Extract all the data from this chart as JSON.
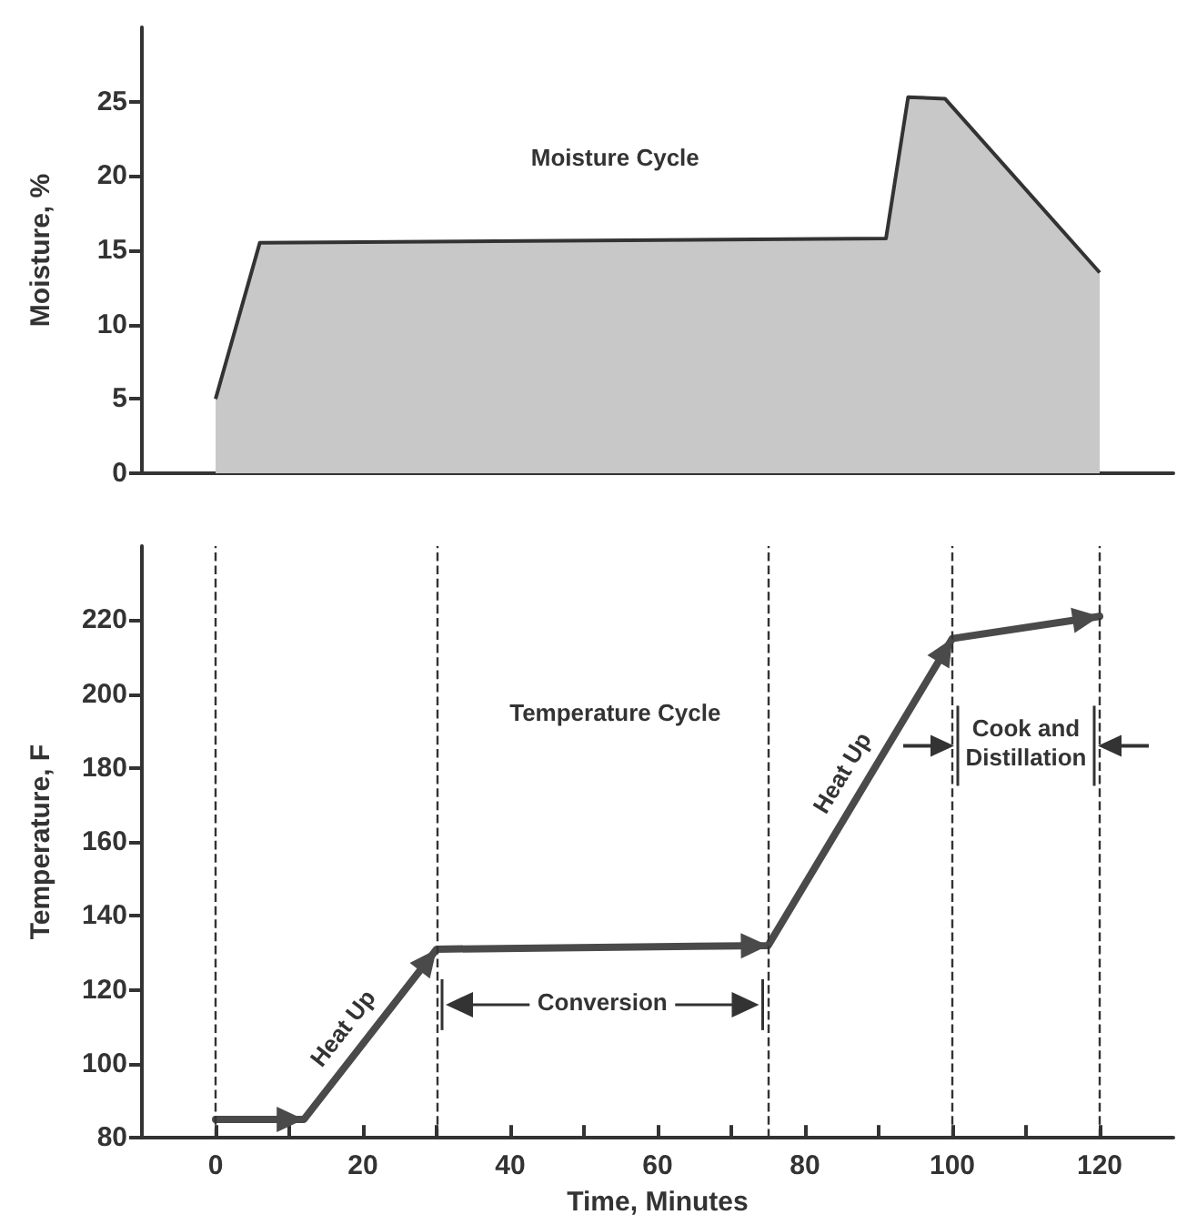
{
  "chart_data": [
    {
      "type": "area",
      "title": "Moisture Cycle",
      "ylabel": "Moisture, %",
      "x": [
        0,
        6,
        91,
        94,
        99,
        120
      ],
      "values": [
        5,
        15.5,
        15.8,
        25.3,
        25.2,
        13.5
      ],
      "color": "#c8c8c8",
      "xlim": [
        -10,
        130
      ],
      "ylim": [
        0,
        30
      ],
      "yticks": [
        0,
        5,
        10,
        15,
        20,
        25
      ],
      "tick_labels": "y",
      "marker": "none"
    },
    {
      "type": "line",
      "title": "Temperature Cycle",
      "xlabel": "Time, Minutes",
      "ylabel": "Temperature, F",
      "x": [
        0,
        12,
        30,
        75,
        100,
        120
      ],
      "values": [
        85,
        85,
        131,
        132,
        215,
        221
      ],
      "color": "#4a4a4a",
      "xlim": [
        -10,
        130
      ],
      "ylim": [
        80,
        240
      ],
      "xticks": [
        0,
        {
          "value": 10,
          "label": null
        },
        20,
        {
          "value": 30,
          "label": null
        },
        40,
        {
          "value": 50,
          "label": null
        },
        60,
        {
          "value": 70,
          "label": null
        },
        80,
        {
          "value": 90,
          "label": null
        },
        100,
        {
          "value": 110,
          "label": null
        },
        120
      ],
      "yticks": [
        80,
        100,
        120,
        140,
        160,
        180,
        200,
        220
      ],
      "marker": "none",
      "line_style": "solid",
      "ref_lines": [
        {
          "axis": "x",
          "value": 0,
          "line_style": "dashed"
        },
        {
          "axis": "x",
          "value": 30,
          "line_style": "dashed"
        },
        {
          "axis": "x",
          "value": 75,
          "line_style": "dashed"
        },
        {
          "axis": "x",
          "value": 100,
          "line_style": "dashed"
        },
        {
          "axis": "x",
          "value": 120,
          "line_style": "dashed"
        }
      ],
      "annotations": [
        {
          "text": "Heat Up",
          "x": 20,
          "y": 106
        },
        "Conversion",
        {
          "text": "Heat Up",
          "x": 88,
          "y": 176
        },
        {
          "text": "Cook and Distillation",
          "x": 100,
          "y": 186
        }
      ]
    }
  ]
}
